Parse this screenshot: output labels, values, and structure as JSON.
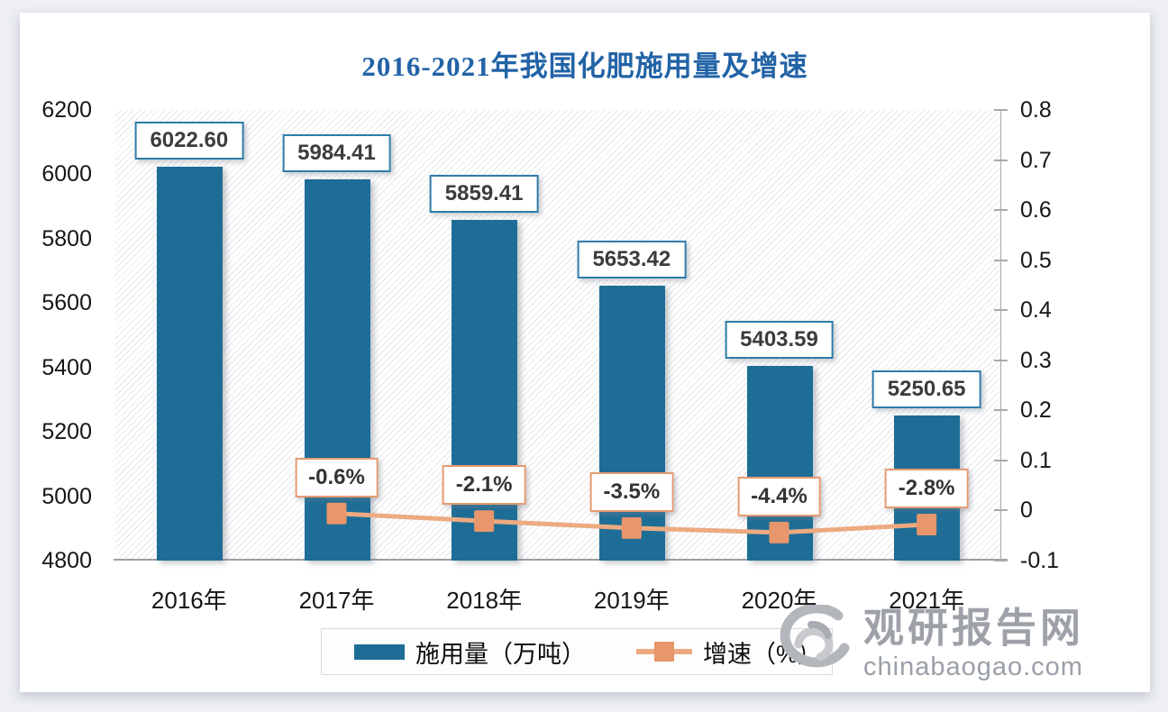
{
  "title": "2016-2021年我国化肥施用量及增速",
  "watermark": {
    "cn": "观研报告网",
    "en": "chinabaogao.com"
  },
  "chart_data": {
    "type": "bar+line",
    "title": "2016-2021年我国化肥施用量及增速",
    "categories": [
      "2016年",
      "2017年",
      "2018年",
      "2019年",
      "2020年",
      "2021年"
    ],
    "series": [
      {
        "name": "施用量（万吨）",
        "type": "bar",
        "axis": "left",
        "color": "#1e6d96",
        "values": [
          6022.6,
          5984.41,
          5859.41,
          5653.42,
          5403.59,
          5250.65
        ],
        "labels": [
          "6022.60",
          "5984.41",
          "5859.41",
          "5653.42",
          "5403.59",
          "5250.65"
        ]
      },
      {
        "name": "增速（%）",
        "type": "line",
        "axis": "right",
        "color": "#e8966b",
        "line_color": "#edaa80",
        "values": [
          null,
          -0.006,
          -0.021,
          -0.035,
          -0.044,
          -0.028
        ],
        "labels": [
          null,
          "-0.6%",
          "-2.1%",
          "-3.5%",
          "-4.4%",
          "-2.8%"
        ]
      }
    ],
    "left_axis": {
      "min": 4800,
      "max": 6200,
      "step": 200,
      "ticks": [
        "6200",
        "6000",
        "5800",
        "5600",
        "5400",
        "5200",
        "5000",
        "4800"
      ]
    },
    "right_axis": {
      "min": -0.1,
      "max": 0.8,
      "step": 0.1,
      "ticks": [
        "0.8",
        "0.7",
        "0.6",
        "0.5",
        "0.4",
        "0.3",
        "0.2",
        "0.1",
        "0",
        "-0.1"
      ]
    },
    "legend": {
      "items": [
        "施用量（万吨）",
        "增速（%）"
      ],
      "position": "bottom"
    },
    "grid": false,
    "plot_background": "diagonal-hatch",
    "title_color": "#2263a6"
  }
}
